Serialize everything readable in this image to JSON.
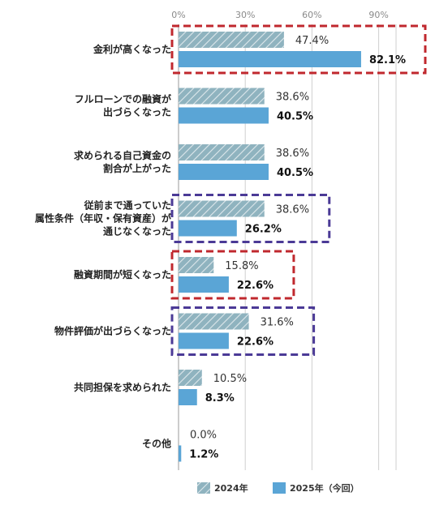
{
  "chart_data": {
    "type": "bar",
    "orientation": "horizontal",
    "title": "",
    "xlabel": "",
    "ylabel": "",
    "xlim": [
      0,
      100
    ],
    "grid": true,
    "tick_labels": [
      "0%",
      "30%",
      "60%",
      "90%"
    ],
    "tick_values": [
      0,
      30,
      60,
      90
    ],
    "categories": [
      [
        "金利が高くなった"
      ],
      [
        "フルローンでの融資が",
        "出づらくなった"
      ],
      [
        "求められる自己資金の",
        "割合が上がった"
      ],
      [
        "従前まで通っていた",
        "属性条件（年収・保有資産）が",
        "通じなくなった"
      ],
      [
        "融資期間が短くなった"
      ],
      [
        "物件評価が出づらくなった"
      ],
      [
        "共同担保を求められた"
      ],
      [
        "その他"
      ]
    ],
    "series": [
      {
        "name": "2024年",
        "values": [
          47.4,
          38.6,
          38.6,
          38.6,
          15.8,
          31.6,
          10.5,
          0.0
        ],
        "labels": [
          "47.4%",
          "38.6%",
          "38.6%",
          "38.6%",
          "15.8%",
          "31.6%",
          "10.5%",
          "0.0%"
        ],
        "color": "#8fb3bf"
      },
      {
        "name": "2025年（今回）",
        "values": [
          82.1,
          40.5,
          40.5,
          26.2,
          22.6,
          22.6,
          8.3,
          1.2
        ],
        "labels": [
          "82.1%",
          "40.5%",
          "40.5%",
          "26.2%",
          "22.6%",
          "22.6%",
          "8.3%",
          "1.2%"
        ],
        "color": "#5aa5d6"
      }
    ],
    "legend_position": "bottom",
    "highlights": [
      {
        "category_index": 0,
        "color": "#c0282e"
      },
      {
        "category_index": 3,
        "color": "#4b3a96"
      },
      {
        "category_index": 4,
        "color": "#c0282e"
      },
      {
        "category_index": 5,
        "color": "#4b3a96"
      }
    ]
  }
}
